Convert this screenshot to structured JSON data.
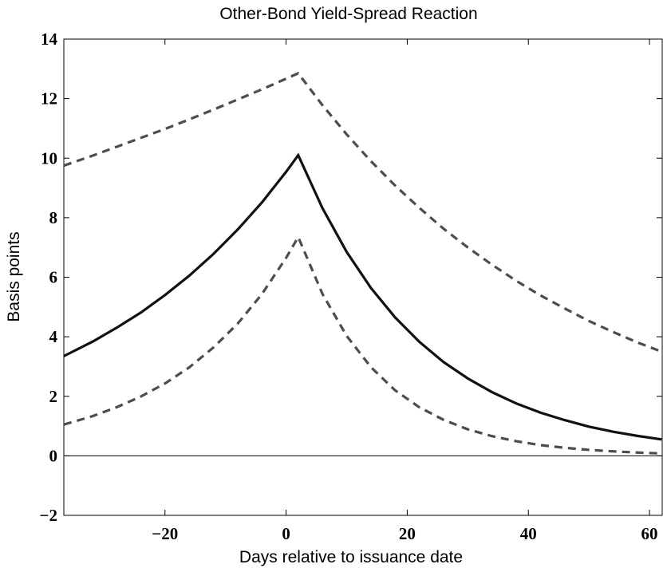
{
  "chart_data": {
    "type": "line",
    "title": "Other-Bond Yield-Spread Reaction",
    "xlabel": "Days relative to issuance date",
    "ylabel": "Basis points",
    "x": [
      -36.7,
      -32,
      -28,
      -24,
      -20,
      -16,
      -12,
      -8,
      -4,
      0,
      2,
      6,
      10,
      14,
      18,
      22,
      26,
      30,
      34,
      38,
      42,
      46,
      50,
      54,
      58,
      62
    ],
    "series": [
      {
        "color": "#4d4d4d",
        "style": "dashed",
        "values": [
          9.75,
          10.08,
          10.38,
          10.68,
          10.98,
          11.3,
          11.63,
          11.97,
          12.31,
          12.67,
          12.85,
          11.78,
          10.8,
          9.9,
          9.08,
          8.33,
          7.63,
          7.0,
          6.42,
          5.88,
          5.39,
          4.95,
          4.53,
          4.16,
          3.81,
          3.5
        ]
      },
      {
        "color": "#111111",
        "style": "solid",
        "values": [
          3.35,
          3.83,
          4.3,
          4.81,
          5.4,
          6.05,
          6.78,
          7.6,
          8.51,
          9.54,
          10.1,
          8.32,
          6.85,
          5.64,
          4.65,
          3.83,
          3.15,
          2.6,
          2.14,
          1.76,
          1.45,
          1.2,
          0.98,
          0.81,
          0.67,
          0.55
        ]
      },
      {
        "color": "#4d4d4d",
        "style": "dashed",
        "values": [
          1.05,
          1.33,
          1.63,
          1.99,
          2.43,
          2.97,
          3.64,
          4.44,
          5.43,
          6.65,
          7.35,
          5.44,
          4.03,
          2.98,
          2.2,
          1.63,
          1.21,
          0.89,
          0.66,
          0.49,
          0.36,
          0.27,
          0.2,
          0.15,
          0.11,
          0.08
        ]
      }
    ],
    "xlim": [
      -36.7,
      62.1
    ],
    "ylim": [
      -2,
      14
    ],
    "xticks": [
      {
        "value": -20,
        "label": "−20"
      },
      0,
      20,
      40,
      60
    ],
    "yticks": [
      {
        "value": -2,
        "label": "−2"
      },
      0,
      2,
      4,
      6,
      8,
      10,
      12,
      14
    ],
    "zero_line": true,
    "grid": false
  }
}
